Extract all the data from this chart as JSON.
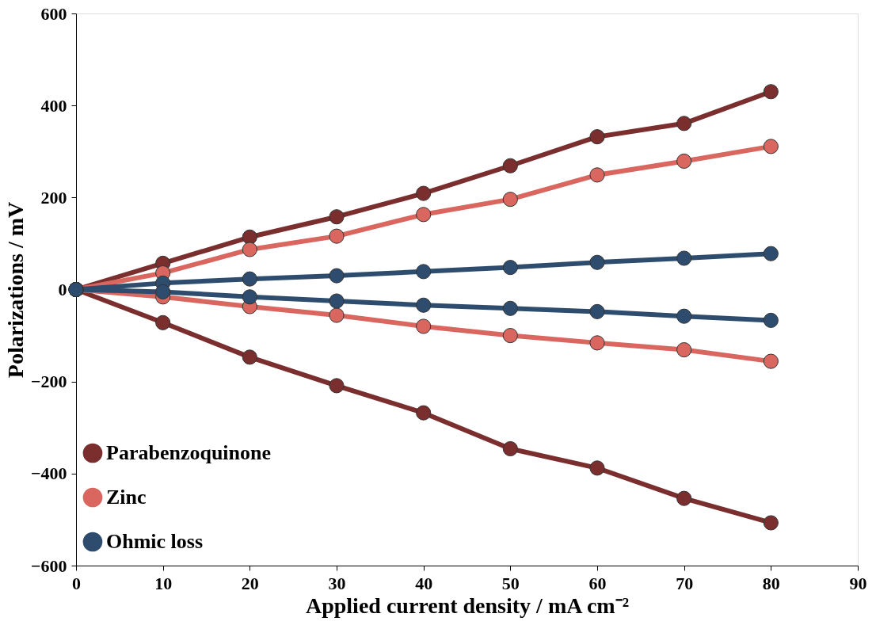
{
  "chart_data": {
    "type": "line",
    "xlabel": "Applied current density / mA cm⁻²",
    "ylabel": "Polarizations / mV",
    "x": [
      0,
      10,
      20,
      30,
      40,
      50,
      60,
      70,
      80
    ],
    "series": [
      {
        "name": "Parabenzoquinone",
        "color": "#7b2e2e",
        "values": [
          0,
          57,
          114,
          158,
          209,
          269,
          332,
          361,
          430
        ]
      },
      {
        "color": "#7b2e2e",
        "values": [
          0,
          -72,
          -147,
          -209,
          -268,
          -346,
          -388,
          -454,
          -507
        ]
      },
      {
        "name": "Zinc",
        "color": "#d9665f",
        "values": [
          0,
          36,
          87,
          116,
          163,
          196,
          249,
          279,
          311
        ]
      },
      {
        "color": "#d9665f",
        "values": [
          0,
          -16,
          -37,
          -56,
          -80,
          -100,
          -116,
          -131,
          -156
        ]
      },
      {
        "name": "Ohmic loss",
        "color": "#2e4d6e",
        "values": [
          0,
          14,
          23,
          30,
          39,
          48,
          59,
          68,
          78
        ]
      },
      {
        "color": "#2e4d6e",
        "values": [
          0,
          -5,
          -16,
          -25,
          -34,
          -41,
          -48,
          -58,
          -67
        ]
      }
    ],
    "xlim": [
      0,
      90
    ],
    "xticks": [
      0,
      10,
      20,
      30,
      40,
      50,
      60,
      70,
      80,
      90
    ],
    "ylim": [
      -600,
      600
    ],
    "yticks": [
      -600,
      -400,
      -200,
      0,
      200,
      400,
      600
    ],
    "grid": false,
    "legend": "bottom left",
    "marker": "circle",
    "line_style": "solid"
  }
}
